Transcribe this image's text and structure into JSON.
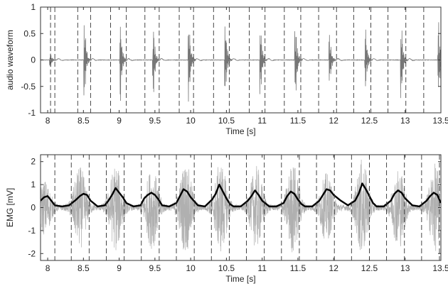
{
  "chart_data": [
    {
      "type": "line",
      "panel": "top",
      "xlabel": "Time [s]",
      "ylabel": "audio waveform",
      "xlim": [
        7.9,
        13.5
      ],
      "ylim": [
        -1,
        1
      ],
      "x_ticks": [
        8,
        8.5,
        9,
        9.5,
        10,
        10.5,
        11,
        11.5,
        12,
        12.5,
        13,
        13.5
      ],
      "x_tick_labels": [
        "8",
        "8.5",
        "9",
        "9.5",
        "10",
        "10.5",
        "11",
        "11.5",
        "12",
        "12.5",
        "13",
        "13.5"
      ],
      "y_ticks": [
        -1,
        -0.5,
        0,
        0.5,
        1
      ],
      "y_tick_labels": [
        "-1",
        "-0.5",
        "0",
        "0.5",
        "1"
      ],
      "grid": false,
      "series": [
        {
          "color": "#777777",
          "burst_times": [
            8.04,
            8.52,
            9.02,
            9.48,
            9.98,
            10.49,
            10.98,
            11.47,
            11.95,
            12.45,
            12.95,
            13.47
          ],
          "burst_amplitudes": [
            0.17,
            0.73,
            0.83,
            0.75,
            0.82,
            0.76,
            0.74,
            0.79,
            0.5,
            0.7,
            0.77,
            0.78
          ],
          "baseline": 0.0
        }
      ],
      "dashed_vlines": [
        8.04,
        8.1,
        8.42,
        8.6,
        8.88,
        9.1,
        9.36,
        9.56,
        9.84,
        10.04,
        10.32,
        10.54,
        10.82,
        11.04,
        11.31,
        11.54,
        11.79,
        12.04,
        12.28,
        12.52,
        12.76,
        13.01,
        13.26,
        13.5
      ]
    },
    {
      "type": "line",
      "panel": "bottom",
      "xlabel": "Time [s]",
      "ylabel": "EMG [mV]",
      "xlim": [
        7.9,
        13.5
      ],
      "ylim": [
        -2.3,
        2.3
      ],
      "x_ticks": [
        8,
        8.5,
        9,
        9.5,
        10,
        10.5,
        11,
        11.5,
        12,
        12.5,
        13,
        13.5
      ],
      "x_tick_labels": [
        "8",
        "8.5",
        "9",
        "9.5",
        "10",
        "10.5",
        "11",
        "11.5",
        "12",
        "12.5",
        "13",
        "13.5"
      ],
      "y_ticks": [
        -2,
        -1,
        0,
        1,
        2
      ],
      "y_tick_labels": [
        "-2",
        "-1",
        "0",
        "1",
        "2"
      ],
      "grid": false,
      "series": [
        {
          "kind": "raw_emg",
          "color": "#b0b0b0",
          "burst_times": [
            7.96,
            8.45,
            8.95,
            9.46,
            9.93,
            10.42,
            10.92,
            11.43,
            11.9,
            12.4,
            12.91,
            13.42
          ],
          "burst_amplitudes": [
            1.1,
            1.7,
            1.8,
            1.7,
            1.9,
            1.9,
            1.7,
            1.9,
            1.4,
            2.0,
            1.7,
            1.8
          ]
        },
        {
          "kind": "envelope",
          "color": "#000000",
          "x": [
            7.9,
            7.95,
            8.0,
            8.05,
            8.1,
            8.2,
            8.3,
            8.4,
            8.45,
            8.5,
            8.55,
            8.6,
            8.7,
            8.8,
            8.85,
            8.9,
            8.95,
            9.0,
            9.05,
            9.1,
            9.2,
            9.3,
            9.35,
            9.4,
            9.45,
            9.5,
            9.55,
            9.6,
            9.7,
            9.8,
            9.85,
            9.9,
            9.95,
            10.0,
            10.1,
            10.2,
            10.3,
            10.35,
            10.4,
            10.45,
            10.5,
            10.55,
            10.6,
            10.7,
            10.8,
            10.85,
            10.9,
            10.95,
            11.0,
            11.1,
            11.2,
            11.3,
            11.35,
            11.4,
            11.45,
            11.5,
            11.55,
            11.6,
            11.7,
            11.8,
            11.85,
            11.9,
            11.95,
            12.0,
            12.1,
            12.2,
            12.3,
            12.35,
            12.4,
            12.45,
            12.5,
            12.55,
            12.6,
            12.7,
            12.8,
            12.85,
            12.9,
            12.95,
            13.0,
            13.1,
            13.2,
            13.3,
            13.35,
            13.4,
            13.45,
            13.5
          ],
          "y": [
            0.3,
            0.45,
            0.5,
            0.3,
            0.1,
            0.05,
            0.1,
            0.35,
            0.5,
            0.6,
            0.55,
            0.3,
            0.05,
            0.1,
            0.3,
            0.55,
            0.85,
            0.65,
            0.45,
            0.2,
            0.05,
            0.1,
            0.4,
            0.55,
            0.65,
            0.55,
            0.35,
            0.1,
            0.05,
            0.2,
            0.5,
            0.8,
            0.7,
            0.45,
            0.1,
            0.05,
            0.35,
            0.6,
            1.0,
            0.7,
            0.4,
            0.15,
            0.05,
            0.05,
            0.3,
            0.5,
            0.75,
            0.55,
            0.3,
            0.05,
            0.05,
            0.2,
            0.5,
            0.7,
            0.6,
            0.35,
            0.15,
            0.05,
            0.05,
            0.3,
            0.55,
            0.8,
            0.75,
            0.55,
            0.3,
            0.1,
            0.3,
            0.6,
            1.05,
            0.8,
            0.5,
            0.2,
            0.05,
            0.05,
            0.3,
            0.6,
            0.75,
            0.65,
            0.4,
            0.1,
            0.05,
            0.3,
            0.5,
            0.65,
            0.55,
            0.2
          ]
        }
      ],
      "dashed_vlines": [
        8.1,
        8.33,
        8.58,
        8.82,
        9.07,
        9.31,
        9.56,
        9.8,
        10.05,
        10.29,
        10.54,
        10.78,
        11.03,
        11.27,
        11.52,
        11.76,
        12.01,
        12.25,
        12.5,
        12.74,
        12.99,
        13.23,
        13.48
      ]
    }
  ]
}
